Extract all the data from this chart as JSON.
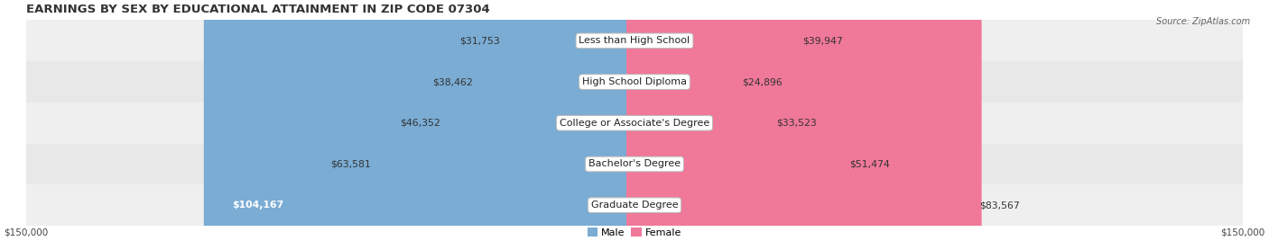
{
  "title": "EARNINGS BY SEX BY EDUCATIONAL ATTAINMENT IN ZIP CODE 07304",
  "source": "Source: ZipAtlas.com",
  "categories": [
    "Less than High School",
    "High School Diploma",
    "College or Associate's Degree",
    "Bachelor's Degree",
    "Graduate Degree"
  ],
  "male_values": [
    31753,
    38462,
    46352,
    63581,
    104167
  ],
  "female_values": [
    39947,
    24896,
    33523,
    51474,
    83567
  ],
  "male_color": "#7aacd4",
  "female_color": "#f07898",
  "row_colors": [
    "#efefef",
    "#e8e8e8",
    "#efefef",
    "#e8e8e8",
    "#efefef"
  ],
  "max_val": 150000,
  "title_fontsize": 9.5,
  "label_fontsize": 8.0,
  "value_fontsize": 7.8,
  "tick_fontsize": 7.5,
  "background_color": "#ffffff"
}
